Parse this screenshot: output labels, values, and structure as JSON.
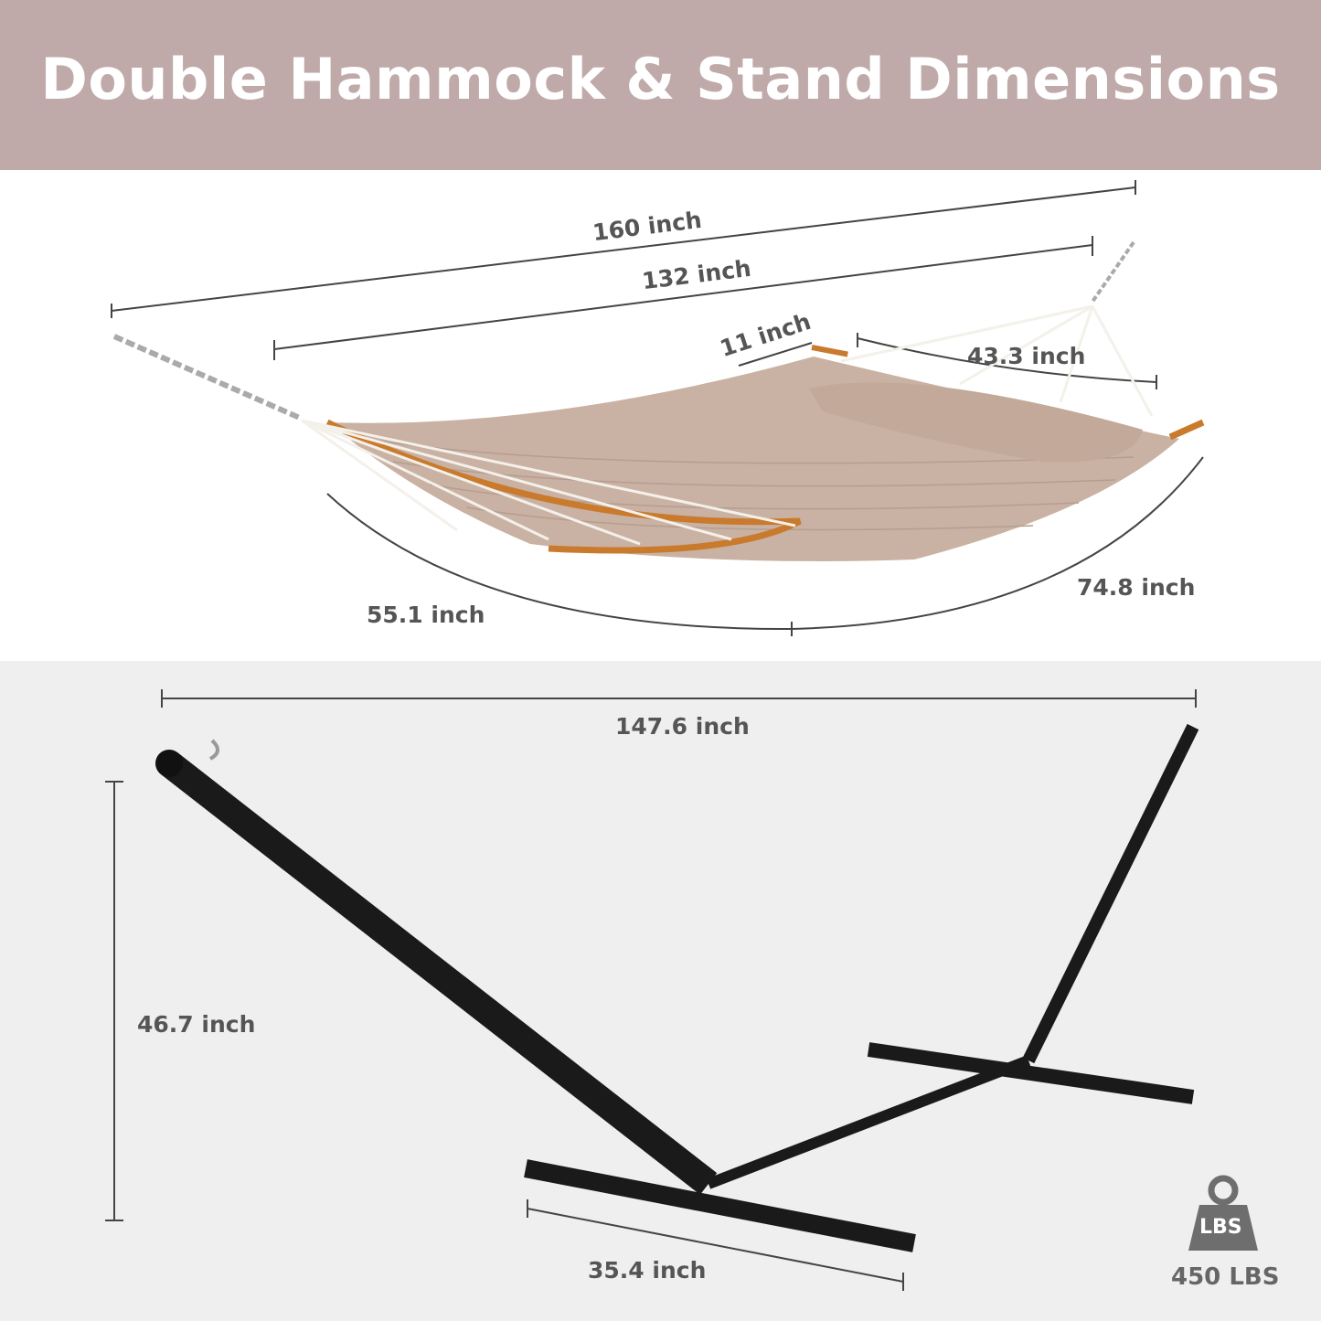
{
  "header": {
    "title": "Double Hammock & Stand Dimensions"
  },
  "hammock": {
    "total_length": "160 inch",
    "bed_length": "132 inch",
    "spreader_gap": "11 inch",
    "spreader_width": "43.3 inch",
    "bed_width_left": "55.1 inch",
    "bed_width_right": "74.8 inch"
  },
  "stand": {
    "length": "147.6 inch",
    "height": "46.7 inch",
    "base_width": "35.4 inch"
  },
  "capacity": {
    "icon": "weight-icon",
    "icon_text": "LBS",
    "value": "450 LBS"
  },
  "colors": {
    "header": "#bfaaa9",
    "fabric": "#c9b2a3",
    "stand": "#1a1a1a",
    "wood": "#c97a2c"
  }
}
